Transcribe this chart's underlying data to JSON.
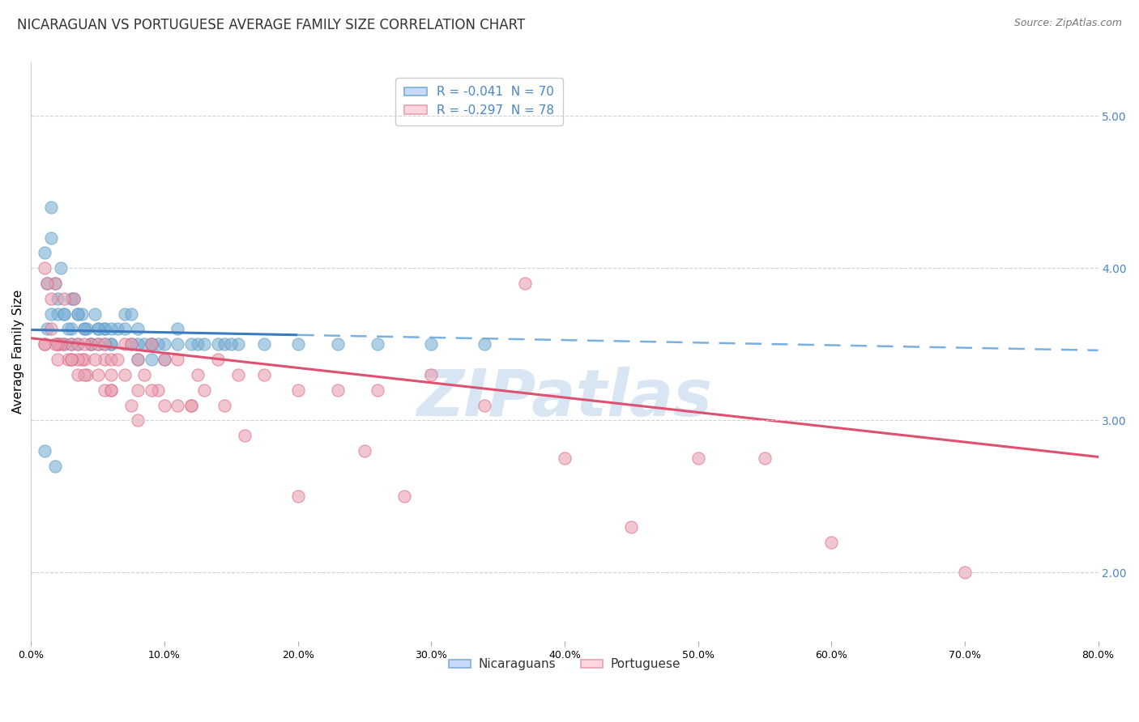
{
  "title": "NICARAGUAN VS PORTUGUESE AVERAGE FAMILY SIZE CORRELATION CHART",
  "source": "Source: ZipAtlas.com",
  "ylabel": "Average Family Size",
  "yticks_right": [
    2.0,
    3.0,
    4.0,
    5.0
  ],
  "xticks_pct": [
    0.0,
    10.0,
    20.0,
    30.0,
    40.0,
    50.0,
    60.0,
    70.0,
    80.0
  ],
  "legend_label1": "R = -0.041  N = 70",
  "legend_label2": "R = -0.297  N = 78",
  "legend_bottom1": "Nicaraguans",
  "legend_bottom2": "Portuguese",
  "blue_color": "#7bafd4",
  "blue_edge": "#5a9ac5",
  "pink_color": "#e8a0b0",
  "pink_edge": "#d96080",
  "trend_blue_solid": "#3a7abf",
  "trend_blue_dash": "#7ab0e0",
  "trend_pink": "#e05070",
  "watermark_color": "#b8d0e8",
  "background_color": "#ffffff",
  "xlim": [
    0.0,
    80.0
  ],
  "ylim": [
    1.55,
    5.35
  ],
  "grid_color": "#cccccc",
  "title_fontsize": 12,
  "axis_label_fontsize": 10,
  "tick_fontsize": 9,
  "legend_fontsize": 10,
  "source_fontsize": 9,
  "blue_trend_x0": 0.0,
  "blue_trend_x1": 80.0,
  "blue_trend_y0": 3.595,
  "blue_trend_y1": 3.46,
  "blue_split_x": 20.0,
  "pink_trend_x0": 0.0,
  "pink_trend_x1": 80.0,
  "pink_trend_y0": 3.54,
  "pink_trend_y1": 2.76,
  "blue_x": [
    1.2,
    2.0,
    2.5,
    3.0,
    3.5,
    4.0,
    4.5,
    5.0,
    5.5,
    6.0,
    6.5,
    7.0,
    7.5,
    8.0,
    9.0,
    10.0,
    11.0,
    12.5,
    14.0,
    15.5,
    17.5,
    20.0,
    23.0,
    26.0,
    30.0,
    34.0,
    1.5,
    2.8,
    4.2,
    6.0,
    9.5,
    14.5,
    3.2,
    5.5,
    8.5,
    13.0,
    1.8,
    3.8,
    7.0,
    12.0,
    2.2,
    4.8,
    9.0,
    1.0,
    2.0,
    3.5,
    6.0,
    11.0,
    1.5,
    3.0,
    5.0,
    8.0,
    1.2,
    2.5,
    4.0,
    7.5,
    1.8,
    3.5,
    5.5,
    10.0,
    1.0,
    2.0,
    3.0,
    5.0,
    9.0,
    15.0,
    1.5,
    2.5,
    4.5,
    8.0
  ],
  "blue_y": [
    3.6,
    3.7,
    3.7,
    3.6,
    3.7,
    3.6,
    3.5,
    3.6,
    3.6,
    3.5,
    3.6,
    3.7,
    3.7,
    3.6,
    3.5,
    3.5,
    3.6,
    3.5,
    3.5,
    3.5,
    3.5,
    3.5,
    3.5,
    3.5,
    3.5,
    3.5,
    3.7,
    3.6,
    3.6,
    3.5,
    3.5,
    3.5,
    3.8,
    3.6,
    3.5,
    3.5,
    3.9,
    3.7,
    3.6,
    3.5,
    4.0,
    3.7,
    3.5,
    4.1,
    3.8,
    3.7,
    3.6,
    3.5,
    4.2,
    3.8,
    3.6,
    3.5,
    3.9,
    3.7,
    3.6,
    3.5,
    2.7,
    3.5,
    3.5,
    3.4,
    2.8,
    3.5,
    3.5,
    3.5,
    3.4,
    3.5,
    4.4,
    3.5,
    3.5,
    3.4
  ],
  "pink_x": [
    1.0,
    2.0,
    2.5,
    3.0,
    3.5,
    4.0,
    4.5,
    5.0,
    5.5,
    6.0,
    6.5,
    7.0,
    7.5,
    8.0,
    9.0,
    10.0,
    11.0,
    12.5,
    14.0,
    15.5,
    17.5,
    20.0,
    23.0,
    26.0,
    30.0,
    34.0,
    1.5,
    2.8,
    4.2,
    6.0,
    9.5,
    14.5,
    3.2,
    5.5,
    8.5,
    13.0,
    1.8,
    3.8,
    7.0,
    12.0,
    2.2,
    4.8,
    9.0,
    1.0,
    2.0,
    3.5,
    6.0,
    11.0,
    1.5,
    3.0,
    5.0,
    8.0,
    1.2,
    2.5,
    4.0,
    7.5,
    1.8,
    3.5,
    5.5,
    10.0,
    37.0,
    50.0,
    1.0,
    3.0,
    6.0,
    12.0,
    2.0,
    4.0,
    8.0,
    16.0,
    25.0,
    40.0,
    55.0,
    20.0,
    28.0,
    45.0,
    60.0,
    70.0
  ],
  "pink_y": [
    3.5,
    3.5,
    3.5,
    3.5,
    3.5,
    3.4,
    3.5,
    3.5,
    3.4,
    3.4,
    3.4,
    3.5,
    3.5,
    3.4,
    3.5,
    3.4,
    3.4,
    3.3,
    3.4,
    3.3,
    3.3,
    3.2,
    3.2,
    3.2,
    3.3,
    3.1,
    3.6,
    3.4,
    3.3,
    3.2,
    3.2,
    3.1,
    3.8,
    3.5,
    3.3,
    3.2,
    3.9,
    3.4,
    3.3,
    3.1,
    3.5,
    3.4,
    3.2,
    4.0,
    3.5,
    3.4,
    3.3,
    3.1,
    3.8,
    3.4,
    3.3,
    3.2,
    3.9,
    3.8,
    3.5,
    3.1,
    3.5,
    3.3,
    3.2,
    3.1,
    3.9,
    2.75,
    3.5,
    3.4,
    3.2,
    3.1,
    3.4,
    3.3,
    3.0,
    2.9,
    2.8,
    2.75,
    2.75,
    2.5,
    2.5,
    2.3,
    2.2,
    2.0
  ]
}
